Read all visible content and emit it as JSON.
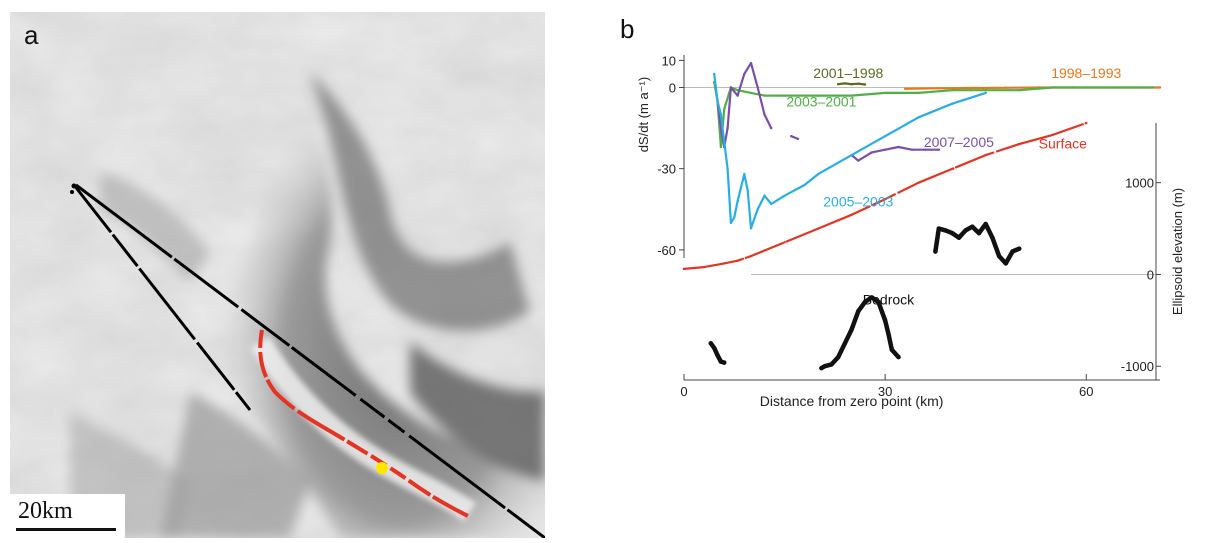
{
  "panel_a": {
    "letter": "a",
    "scalebar_label": "20km"
  },
  "panel_b": {
    "letter": "b"
  },
  "colors": {
    "series_2001_1998": "#5a6b1f",
    "series_1998_1993": "#e8781e",
    "series_2003_2001": "#4fb045",
    "series_2007_2005": "#7b4fa8",
    "series_2005_2003": "#29aee3",
    "surface": "#e63322",
    "bedrock": "#111111"
  },
  "chart_data": {
    "type": "line",
    "xlabel": "Distance from zero point (km)",
    "xlim": [
      0,
      71
    ],
    "x_ticks": [
      0,
      30,
      60
    ],
    "left_axis": {
      "label": "dS/dt (m a⁻¹)",
      "ylim": [
        -63,
        12
      ],
      "ticks": [
        10,
        0,
        -30,
        -60
      ]
    },
    "right_axis": {
      "label": "Ellipsoid elevation (m)",
      "ylim": [
        -1150,
        1650
      ],
      "ticks": [
        1000,
        0,
        -1000
      ]
    },
    "series": [
      {
        "name": "2001–1998",
        "axis": "left",
        "x": [
          23,
          24,
          25,
          26,
          27
        ],
        "y": [
          1.2,
          1.5,
          1.2,
          1.4,
          1.1
        ]
      },
      {
        "name": "1998–1993",
        "axis": "left",
        "x": [
          33,
          38,
          43,
          48,
          53,
          58,
          63,
          68,
          71
        ],
        "y": [
          -0.5,
          -0.3,
          -0.2,
          -0.1,
          0,
          0,
          0,
          0,
          0
        ]
      },
      {
        "name": "2003–2001",
        "axis": "left",
        "x": [
          4.5,
          5,
          5.5,
          6,
          7,
          8,
          10,
          12,
          14,
          16,
          20,
          25,
          30,
          35,
          40,
          45,
          50,
          55,
          60,
          65,
          70
        ],
        "y": [
          2,
          -5,
          -22,
          -8,
          0,
          -1,
          -2,
          -3,
          -3,
          -3,
          -3,
          -3,
          -2,
          -2,
          -1,
          -1,
          -1,
          0,
          0,
          0,
          0
        ]
      },
      {
        "name": "2007–2005",
        "axis": "left",
        "x": [
          5,
          5.5,
          6,
          6.5,
          7,
          8,
          9,
          10,
          11,
          12,
          13,
          16,
          17,
          25,
          26,
          28,
          30,
          32,
          34,
          36,
          38
        ],
        "y": [
          -5,
          -15,
          -22,
          -15,
          0,
          -3,
          5,
          9,
          0,
          -10,
          -15,
          -18,
          -19,
          -25,
          -27,
          -24,
          -23,
          -22,
          -23,
          -23,
          -23
        ]
      },
      {
        "name": "2005–2003",
        "axis": "left",
        "x": [
          4.5,
          5,
          5.5,
          6,
          6.5,
          7,
          7.5,
          8,
          9,
          9.5,
          10,
          11,
          12,
          13,
          15,
          18,
          20,
          25,
          30,
          35,
          40,
          45
        ],
        "y": [
          5,
          -5,
          -10,
          -20,
          -30,
          -50,
          -48,
          -42,
          -32,
          -38,
          -52,
          -45,
          -40,
          -43,
          -40,
          -36,
          -32,
          -25,
          -18,
          -11,
          -6,
          -2
        ]
      },
      {
        "name": "Surface",
        "axis": "right",
        "x": [
          0,
          3,
          6,
          8,
          10,
          15,
          20,
          25,
          30,
          35,
          40,
          45,
          50,
          55,
          60
        ],
        "y": [
          60,
          80,
          120,
          150,
          200,
          350,
          500,
          650,
          820,
          1000,
          1150,
          1300,
          1420,
          1520,
          1650
        ]
      },
      {
        "name": "Bedrock",
        "axis": "right",
        "x": [
          4,
          4.5,
          5,
          5.5,
          6,
          20.5,
          21,
          22,
          23,
          24,
          25,
          26,
          27,
          28,
          29,
          30,
          30.5,
          31,
          32,
          37.5,
          38,
          39,
          40,
          41,
          42,
          43,
          44,
          45,
          46,
          47,
          48,
          49,
          50
        ],
        "y": [
          -750,
          -800,
          -880,
          -950,
          -960,
          -1020,
          -1000,
          -980,
          -900,
          -750,
          -600,
          -400,
          -300,
          -250,
          -300,
          -500,
          -650,
          -820,
          -900,
          250,
          500,
          480,
          450,
          400,
          480,
          520,
          450,
          550,
          400,
          200,
          120,
          250,
          280
        ]
      }
    ],
    "annotations": [
      {
        "text": "2001–1998",
        "series": "2001–1998"
      },
      {
        "text": "1998–1993",
        "series": "1998–1993"
      },
      {
        "text": "2003–2001",
        "series": "2003–2001"
      },
      {
        "text": "2007–2005",
        "series": "2007–2005"
      },
      {
        "text": "2005–2003",
        "series": "2005–2003"
      },
      {
        "text": "Surface",
        "series": "Surface"
      },
      {
        "text": "Bedrock",
        "series": "Bedrock"
      }
    ]
  }
}
